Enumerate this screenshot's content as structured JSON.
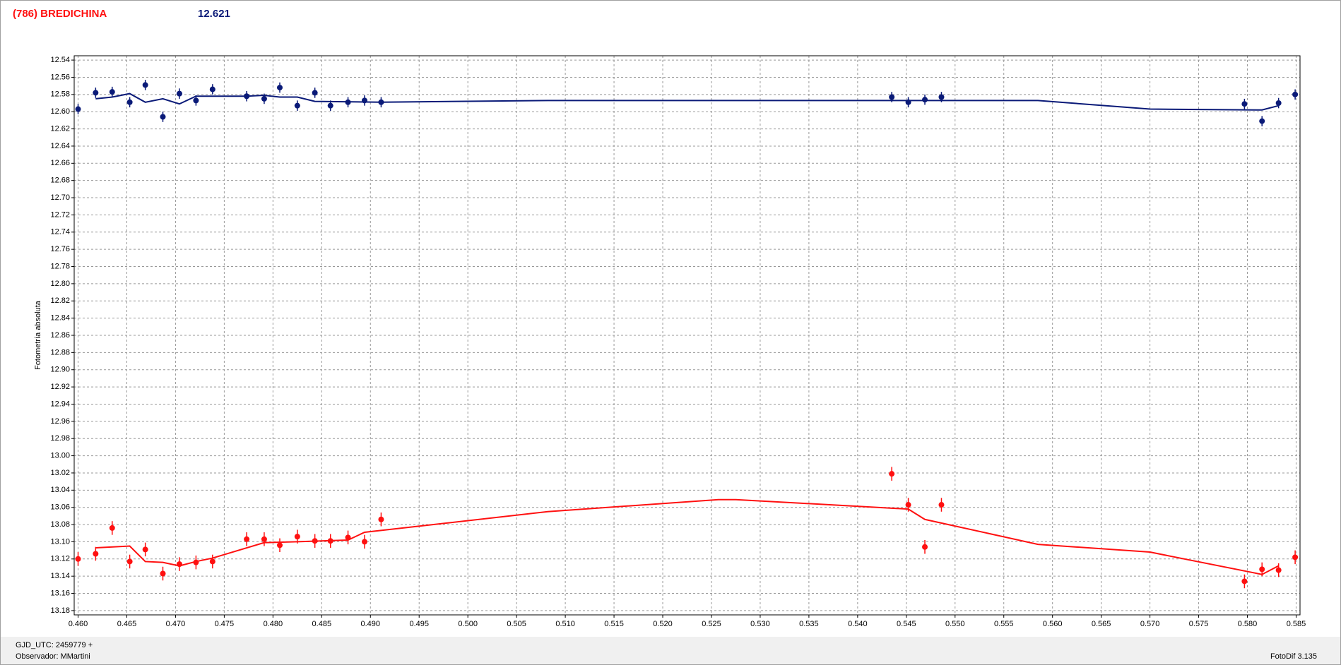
{
  "chart_data": {
    "type": "scatter",
    "title": "(786) BREDICHINA",
    "subtitle": "12.621",
    "ylabel": "Fotometría absoluta",
    "footer": {
      "left_1": "GJD_UTC: 2459779 +",
      "left_2": "Observador: MMartini",
      "right": "FotoDif 3.135"
    },
    "xlim": [
      0.4596,
      0.5854
    ],
    "ylim": [
      13.185,
      12.535
    ],
    "grid": true,
    "xticks": [
      {
        "value": 0.46,
        "label": "0.460"
      },
      0.465,
      {
        "value": 0.47,
        "label": "0.470"
      },
      0.475,
      {
        "value": 0.48,
        "label": "0.480"
      },
      0.485,
      {
        "value": 0.49,
        "label": "0.490"
      },
      0.495,
      {
        "value": 0.5,
        "label": "0.500"
      },
      0.505,
      {
        "value": 0.51,
        "label": "0.510"
      },
      0.515,
      {
        "value": 0.52,
        "label": "0.520"
      },
      0.525,
      {
        "value": 0.53,
        "label": "0.530"
      },
      0.535,
      {
        "value": 0.54,
        "label": "0.540"
      },
      0.545,
      {
        "value": 0.55,
        "label": "0.550"
      },
      0.555,
      {
        "value": 0.56,
        "label": "0.560"
      },
      0.565,
      {
        "value": 0.57,
        "label": "0.570"
      },
      0.575,
      {
        "value": 0.58,
        "label": "0.580"
      },
      0.585
    ],
    "yticks": [
      12.54,
      12.56,
      12.58,
      {
        "value": 12.6,
        "label": "12.60"
      },
      12.62,
      12.64,
      12.66,
      12.68,
      {
        "value": 12.7,
        "label": "12.70"
      },
      12.72,
      12.74,
      12.76,
      12.78,
      {
        "value": 12.8,
        "label": "12.80"
      },
      12.82,
      12.84,
      12.86,
      12.88,
      {
        "value": 12.9,
        "label": "12.90"
      },
      12.92,
      12.94,
      12.96,
      12.98,
      {
        "value": 13.0,
        "label": "13.00"
      },
      13.02,
      13.04,
      13.06,
      13.08,
      {
        "value": 13.1,
        "label": "13.10"
      },
      13.12,
      13.14,
      13.16,
      13.18
    ],
    "series": [
      {
        "color": "#0a1a78",
        "x": [
          0.46,
          0.4618,
          0.4635,
          0.4653,
          0.4669,
          0.4687,
          0.4704,
          0.4721,
          0.4738,
          0.4773,
          0.4791,
          0.4807,
          0.4825,
          0.4843,
          0.4859,
          0.4877,
          0.4894,
          0.4911,
          0.5435,
          0.5452,
          0.5469,
          0.5486,
          0.5797,
          0.5815,
          0.5832,
          0.5849
        ],
        "values": [
          12.597,
          12.578,
          12.577,
          12.589,
          12.569,
          12.606,
          12.579,
          12.587,
          12.574,
          12.582,
          12.585,
          12.572,
          12.593,
          12.578,
          12.593,
          12.589,
          12.587,
          12.589,
          12.583,
          12.589,
          12.586,
          12.583,
          12.591,
          12.611,
          12.59,
          12.58
        ],
        "errors": [
          0.006,
          0.006,
          0.006,
          0.006,
          0.006,
          0.006,
          0.006,
          0.006,
          0.006,
          0.006,
          0.006,
          0.006,
          0.006,
          0.006,
          0.006,
          0.006,
          0.006,
          0.006,
          0.006,
          0.006,
          0.006,
          0.006,
          0.006,
          0.006,
          0.006,
          0.006
        ]
      },
      {
        "color": "#ff1010",
        "x": [
          0.46,
          0.4618,
          0.4635,
          0.4653,
          0.4669,
          0.4687,
          0.4704,
          0.4721,
          0.4738,
          0.4773,
          0.4791,
          0.4807,
          0.4825,
          0.4843,
          0.4859,
          0.4877,
          0.4894,
          0.4911,
          0.5435,
          0.5452,
          0.5469,
          0.5486,
          0.5797,
          0.5815,
          0.5832,
          0.5849
        ],
        "values": [
          13.12,
          13.114,
          13.084,
          13.123,
          13.109,
          13.137,
          13.126,
          13.124,
          13.123,
          13.097,
          13.097,
          13.104,
          13.094,
          13.099,
          13.099,
          13.095,
          13.1,
          13.074,
          13.021,
          13.057,
          13.106,
          13.057,
          13.146,
          13.132,
          13.133,
          13.118
        ],
        "errors": [
          0.008,
          0.008,
          0.008,
          0.008,
          0.008,
          0.008,
          0.008,
          0.008,
          0.008,
          0.008,
          0.008,
          0.008,
          0.008,
          0.008,
          0.008,
          0.008,
          0.008,
          0.008,
          0.008,
          0.008,
          0.008,
          0.008,
          0.008,
          0.008,
          0.008,
          0.008
        ]
      }
    ],
    "fits": [
      {
        "color": "#0a1a78",
        "x": [
          0.4618,
          0.4635,
          0.4653,
          0.4669,
          0.4687,
          0.4704,
          0.4721,
          0.4773,
          0.4791,
          0.4807,
          0.4825,
          0.4843,
          0.4911,
          0.5082,
          0.5585,
          0.57,
          0.5815,
          0.5832
        ],
        "values": [
          12.585,
          12.583,
          12.579,
          12.589,
          12.585,
          12.591,
          12.582,
          12.582,
          12.581,
          12.583,
          12.583,
          12.588,
          12.589,
          12.587,
          12.587,
          12.597,
          12.598,
          12.593
        ]
      },
      {
        "color": "#ff1010",
        "x": [
          0.4618,
          0.4653,
          0.4669,
          0.4687,
          0.4704,
          0.4721,
          0.4738,
          0.4791,
          0.4825,
          0.4877,
          0.4894,
          0.5082,
          0.5257,
          0.5275,
          0.5452,
          0.5469,
          0.5585,
          0.57,
          0.5815,
          0.5832
        ],
        "values": [
          13.107,
          13.105,
          13.123,
          13.124,
          13.128,
          13.123,
          13.119,
          13.101,
          13.1,
          13.098,
          13.089,
          13.065,
          13.051,
          13.051,
          13.062,
          13.074,
          13.103,
          13.112,
          13.138,
          13.128
        ]
      }
    ]
  }
}
